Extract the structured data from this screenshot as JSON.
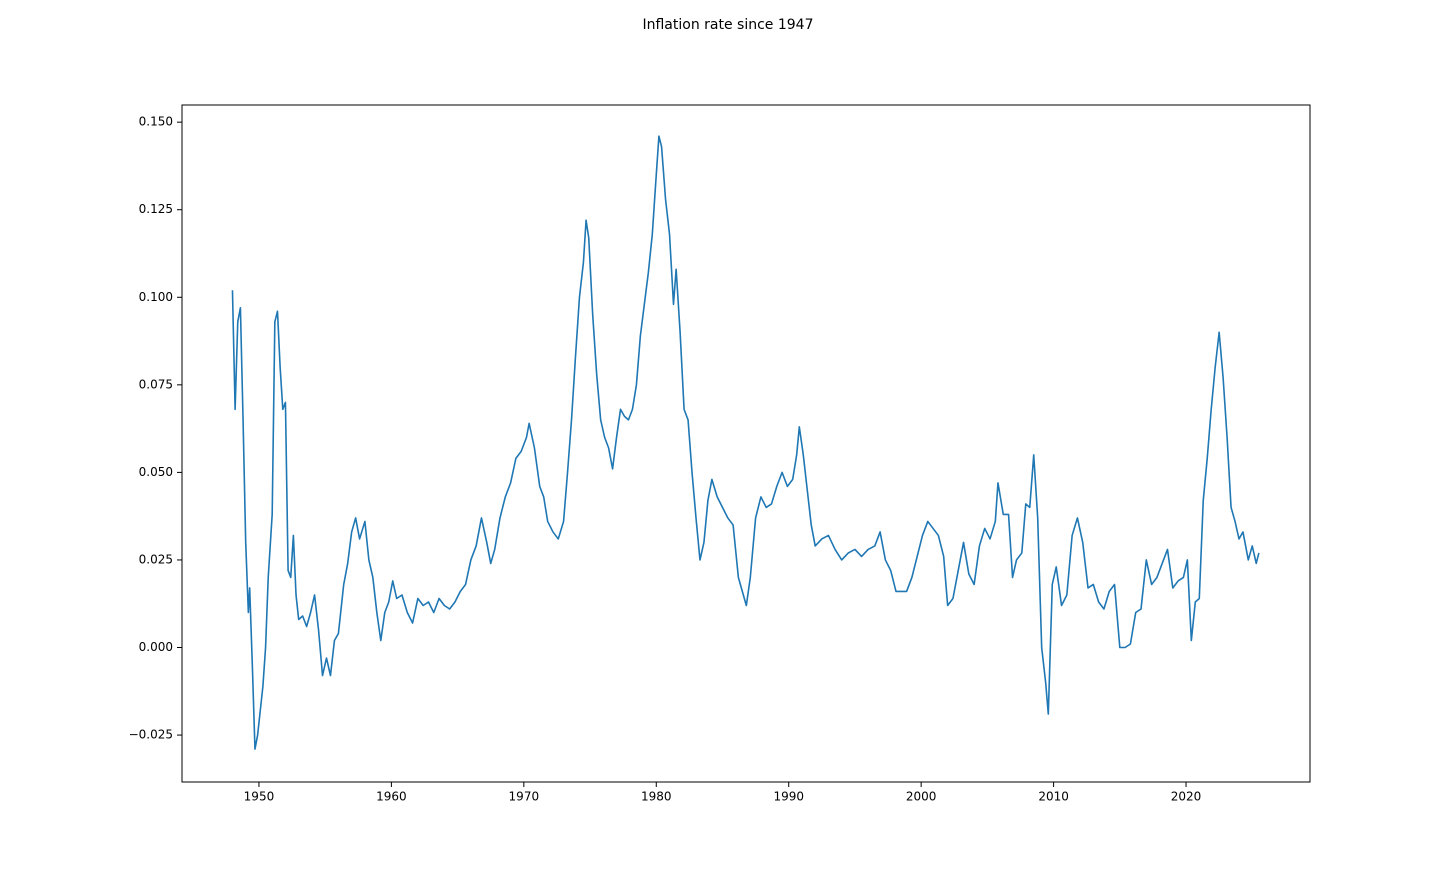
{
  "chart_data": {
    "type": "line",
    "title": "Inflation rate since 1947",
    "x": [
      1948.0,
      1948.2,
      1948.4,
      1948.6,
      1948.8,
      1949.0,
      1949.2,
      1949.3,
      1949.5,
      1949.7,
      1949.9,
      1950.1,
      1950.3,
      1950.5,
      1950.7,
      1951.0,
      1951.2,
      1951.4,
      1951.6,
      1951.8,
      1952.0,
      1952.2,
      1952.4,
      1952.6,
      1952.8,
      1953.0,
      1953.3,
      1953.6,
      1953.9,
      1954.2,
      1954.5,
      1954.8,
      1955.1,
      1955.4,
      1955.7,
      1956.0,
      1956.4,
      1956.7,
      1957.0,
      1957.3,
      1957.6,
      1958.0,
      1958.3,
      1958.6,
      1958.9,
      1959.2,
      1959.5,
      1959.8,
      1960.1,
      1960.4,
      1960.8,
      1961.2,
      1961.6,
      1962.0,
      1962.4,
      1962.8,
      1963.2,
      1963.6,
      1964.0,
      1964.4,
      1964.8,
      1965.2,
      1965.6,
      1966.0,
      1966.4,
      1966.8,
      1967.2,
      1967.5,
      1967.8,
      1968.2,
      1968.6,
      1969.0,
      1969.4,
      1969.8,
      1970.2,
      1970.4,
      1970.8,
      1971.2,
      1971.5,
      1971.8,
      1972.2,
      1972.6,
      1973.0,
      1973.3,
      1973.6,
      1973.9,
      1974.2,
      1974.5,
      1974.7,
      1974.9,
      1975.2,
      1975.5,
      1975.8,
      1976.1,
      1976.4,
      1976.7,
      1977.0,
      1977.3,
      1977.6,
      1977.9,
      1978.2,
      1978.5,
      1978.8,
      1979.1,
      1979.4,
      1979.7,
      1980.0,
      1980.2,
      1980.4,
      1980.7,
      1981.0,
      1981.3,
      1981.5,
      1981.8,
      1982.1,
      1982.4,
      1982.7,
      1983.0,
      1983.3,
      1983.6,
      1983.9,
      1984.2,
      1984.6,
      1985.0,
      1985.4,
      1985.8,
      1986.2,
      1986.5,
      1986.8,
      1987.1,
      1987.5,
      1987.9,
      1988.3,
      1988.7,
      1989.1,
      1989.5,
      1989.9,
      1990.3,
      1990.6,
      1990.8,
      1991.1,
      1991.4,
      1991.7,
      1992.0,
      1992.5,
      1993.0,
      1993.5,
      1994.0,
      1994.5,
      1995.0,
      1995.5,
      1996.0,
      1996.5,
      1996.9,
      1997.3,
      1997.7,
      1998.1,
      1998.5,
      1998.9,
      1999.3,
      1999.7,
      2000.1,
      2000.5,
      2000.9,
      2001.3,
      2001.7,
      2002.0,
      2002.4,
      2002.8,
      2003.2,
      2003.6,
      2004.0,
      2004.4,
      2004.8,
      2005.2,
      2005.6,
      2005.8,
      2006.2,
      2006.6,
      2006.9,
      2007.2,
      2007.6,
      2007.9,
      2008.2,
      2008.5,
      2008.8,
      2009.1,
      2009.4,
      2009.6,
      2009.9,
      2010.2,
      2010.6,
      2011.0,
      2011.4,
      2011.8,
      2012.2,
      2012.6,
      2013.0,
      2013.4,
      2013.8,
      2014.2,
      2014.6,
      2015.0,
      2015.4,
      2015.8,
      2016.2,
      2016.6,
      2017.0,
      2017.4,
      2017.8,
      2018.2,
      2018.6,
      2019.0,
      2019.4,
      2019.8,
      2020.1,
      2020.4,
      2020.7,
      2021.0,
      2021.3,
      2021.6,
      2021.9,
      2022.2,
      2022.5,
      2022.8,
      2023.1,
      2023.4,
      2023.7,
      2024.0,
      2024.3,
      2024.7,
      2025.0,
      2025.3,
      2025.5
    ],
    "series": [
      {
        "color": "#1f77b4",
        "values": [
          0.102,
          0.068,
          0.093,
          0.097,
          0.065,
          0.03,
          0.01,
          0.017,
          -0.005,
          -0.029,
          -0.025,
          -0.018,
          -0.011,
          0.0,
          0.02,
          0.038,
          0.093,
          0.096,
          0.08,
          0.068,
          0.07,
          0.022,
          0.02,
          0.032,
          0.015,
          0.008,
          0.009,
          0.006,
          0.01,
          0.015,
          0.005,
          -0.008,
          -0.003,
          -0.008,
          0.002,
          0.004,
          0.018,
          0.024,
          0.033,
          0.037,
          0.031,
          0.036,
          0.025,
          0.02,
          0.01,
          0.002,
          0.01,
          0.013,
          0.019,
          0.014,
          0.015,
          0.01,
          0.007,
          0.014,
          0.012,
          0.013,
          0.01,
          0.014,
          0.012,
          0.011,
          0.013,
          0.016,
          0.018,
          0.025,
          0.029,
          0.037,
          0.03,
          0.024,
          0.028,
          0.037,
          0.043,
          0.047,
          0.054,
          0.056,
          0.06,
          0.064,
          0.057,
          0.046,
          0.043,
          0.036,
          0.033,
          0.031,
          0.036,
          0.05,
          0.065,
          0.083,
          0.1,
          0.11,
          0.122,
          0.117,
          0.095,
          0.078,
          0.065,
          0.06,
          0.057,
          0.051,
          0.06,
          0.068,
          0.066,
          0.065,
          0.068,
          0.075,
          0.089,
          0.098,
          0.107,
          0.118,
          0.135,
          0.146,
          0.143,
          0.128,
          0.118,
          0.098,
          0.108,
          0.09,
          0.068,
          0.065,
          0.05,
          0.037,
          0.025,
          0.03,
          0.042,
          0.048,
          0.043,
          0.04,
          0.037,
          0.035,
          0.02,
          0.016,
          0.012,
          0.02,
          0.037,
          0.043,
          0.04,
          0.041,
          0.046,
          0.05,
          0.046,
          0.048,
          0.055,
          0.063,
          0.055,
          0.045,
          0.035,
          0.029,
          0.031,
          0.032,
          0.028,
          0.025,
          0.027,
          0.028,
          0.026,
          0.028,
          0.029,
          0.033,
          0.025,
          0.022,
          0.016,
          0.016,
          0.016,
          0.02,
          0.026,
          0.032,
          0.036,
          0.034,
          0.032,
          0.026,
          0.012,
          0.014,
          0.022,
          0.03,
          0.021,
          0.018,
          0.029,
          0.034,
          0.031,
          0.036,
          0.047,
          0.038,
          0.038,
          0.02,
          0.025,
          0.027,
          0.041,
          0.04,
          0.055,
          0.037,
          0.0,
          -0.01,
          -0.019,
          0.018,
          0.023,
          0.012,
          0.015,
          0.032,
          0.037,
          0.03,
          0.017,
          0.018,
          0.013,
          0.011,
          0.016,
          0.018,
          0.0,
          0.0,
          0.001,
          0.01,
          0.011,
          0.025,
          0.018,
          0.02,
          0.024,
          0.028,
          0.017,
          0.019,
          0.02,
          0.025,
          0.002,
          0.013,
          0.014,
          0.042,
          0.054,
          0.068,
          0.08,
          0.09,
          0.077,
          0.06,
          0.04,
          0.036,
          0.031,
          0.033,
          0.025,
          0.029,
          0.024,
          0.027
        ]
      }
    ],
    "xlim": [
      1944.19,
      2029.36
    ],
    "xticks": [
      1950,
      1960,
      1970,
      1980,
      1990,
      2000,
      2010,
      2020
    ],
    "ylim": [
      -0.0384,
      0.1549
    ],
    "yticks": [
      {
        "value": -0.025,
        "label": "−0.025"
      },
      {
        "value": 0,
        "label": "0.000"
      },
      {
        "value": 0.025,
        "label": "0.025"
      },
      {
        "value": 0.05,
        "label": "0.050"
      },
      {
        "value": 0.075,
        "label": "0.075"
      },
      {
        "value": 0.1,
        "label": "0.100"
      },
      {
        "value": 0.125,
        "label": "0.125"
      },
      {
        "value": 0.15,
        "label": "0.150"
      }
    ],
    "grid": false
  }
}
